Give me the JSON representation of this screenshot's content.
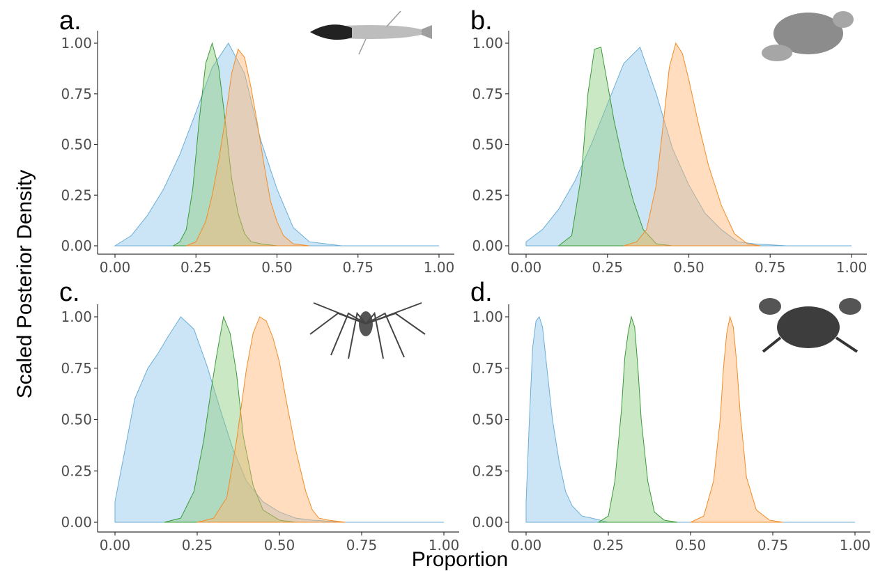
{
  "xlabel": "Proportion",
  "ylabel": "Scaled Posterior Density",
  "colors": {
    "blue": "#8fc6ea",
    "green": "#8ccd7c",
    "orange": "#ffb46e",
    "blue_line": "#6baed6",
    "green_line": "#3a9a3a",
    "orange_line": "#f28c28"
  },
  "chart_data": [
    {
      "type": "area",
      "panel": "a.",
      "icon": "shrimp-icon",
      "xlim": [
        0,
        1
      ],
      "ylim": [
        0,
        1
      ],
      "xticks": [
        "0.00",
        "0.25",
        "0.50",
        "0.75",
        "1.00"
      ],
      "yticks": [
        "0.00",
        "0.25",
        "0.50",
        "0.75",
        "1.00"
      ],
      "series": [
        {
          "color": "blue",
          "x": [
            0.0,
            0.05,
            0.1,
            0.15,
            0.2,
            0.25,
            0.3,
            0.35,
            0.4,
            0.45,
            0.5,
            0.55,
            0.6,
            0.65,
            0.7,
            1.0
          ],
          "values": [
            0.0,
            0.05,
            0.15,
            0.28,
            0.45,
            0.66,
            0.88,
            1.0,
            0.85,
            0.52,
            0.28,
            0.09,
            0.02,
            0.01,
            0.0,
            0.0
          ]
        },
        {
          "color": "green",
          "x": [
            0.18,
            0.2,
            0.22,
            0.24,
            0.26,
            0.28,
            0.3,
            0.32,
            0.34,
            0.36,
            0.38,
            0.4,
            0.42,
            0.45,
            0.5
          ],
          "values": [
            0.0,
            0.02,
            0.08,
            0.28,
            0.62,
            0.9,
            1.0,
            0.88,
            0.62,
            0.33,
            0.16,
            0.06,
            0.02,
            0.01,
            0.0
          ]
        },
        {
          "color": "orange",
          "x": [
            0.22,
            0.25,
            0.28,
            0.3,
            0.32,
            0.34,
            0.36,
            0.38,
            0.4,
            0.42,
            0.44,
            0.46,
            0.48,
            0.5,
            0.52,
            0.55,
            0.6
          ],
          "values": [
            0.0,
            0.02,
            0.12,
            0.25,
            0.42,
            0.62,
            0.85,
            0.97,
            0.93,
            0.78,
            0.6,
            0.4,
            0.22,
            0.12,
            0.05,
            0.01,
            0.0
          ]
        }
      ]
    },
    {
      "type": "area",
      "panel": "b.",
      "icon": "crab-icon",
      "xlim": [
        0,
        1
      ],
      "ylim": [
        0,
        1
      ],
      "xticks": [
        "0.00",
        "0.25",
        "0.50",
        "0.75",
        "1.00"
      ],
      "yticks": [
        "0.00",
        "0.25",
        "0.50",
        "0.75",
        "1.00"
      ],
      "series": [
        {
          "color": "blue",
          "x": [
            0.0,
            0.05,
            0.1,
            0.15,
            0.2,
            0.25,
            0.3,
            0.35,
            0.4,
            0.45,
            0.5,
            0.55,
            0.6,
            0.65,
            0.7,
            0.8,
            1.0
          ],
          "values": [
            0.02,
            0.08,
            0.18,
            0.32,
            0.5,
            0.7,
            0.9,
            0.98,
            0.75,
            0.48,
            0.3,
            0.16,
            0.08,
            0.02,
            0.01,
            0.0,
            0.0
          ]
        },
        {
          "color": "green",
          "x": [
            0.1,
            0.14,
            0.17,
            0.19,
            0.21,
            0.23,
            0.25,
            0.27,
            0.3,
            0.33,
            0.36,
            0.4,
            0.45
          ],
          "values": [
            0.0,
            0.05,
            0.35,
            0.75,
            0.97,
            0.98,
            0.8,
            0.62,
            0.4,
            0.22,
            0.08,
            0.01,
            0.0
          ]
        },
        {
          "color": "orange",
          "x": [
            0.3,
            0.34,
            0.37,
            0.4,
            0.42,
            0.44,
            0.46,
            0.48,
            0.5,
            0.53,
            0.56,
            0.6,
            0.64,
            0.68,
            0.72
          ],
          "values": [
            0.0,
            0.02,
            0.08,
            0.3,
            0.58,
            0.88,
            1.0,
            0.95,
            0.82,
            0.6,
            0.4,
            0.2,
            0.06,
            0.01,
            0.0
          ]
        }
      ]
    },
    {
      "type": "area",
      "panel": "c.",
      "icon": "spider-crab-icon",
      "xlim": [
        0,
        1
      ],
      "ylim": [
        0,
        1
      ],
      "xticks": [
        "0.00",
        "0.25",
        "0.50",
        "0.75",
        "1.00"
      ],
      "yticks": [
        "0.00",
        "0.25",
        "0.50",
        "0.75",
        "1.00"
      ],
      "series": [
        {
          "color": "blue",
          "x": [
            0.0,
            0.03,
            0.06,
            0.1,
            0.13,
            0.16,
            0.2,
            0.24,
            0.28,
            0.32,
            0.36,
            0.4,
            0.45,
            0.5,
            0.55,
            0.6,
            0.7,
            1.0
          ],
          "values": [
            0.1,
            0.35,
            0.6,
            0.75,
            0.82,
            0.9,
            1.0,
            0.94,
            0.76,
            0.55,
            0.35,
            0.2,
            0.1,
            0.05,
            0.02,
            0.01,
            0.0,
            0.0
          ]
        },
        {
          "color": "green",
          "x": [
            0.15,
            0.2,
            0.24,
            0.27,
            0.29,
            0.31,
            0.33,
            0.35,
            0.37,
            0.39,
            0.42,
            0.45,
            0.5,
            0.55
          ],
          "values": [
            0.0,
            0.02,
            0.15,
            0.4,
            0.62,
            0.82,
            1.0,
            0.92,
            0.72,
            0.42,
            0.18,
            0.06,
            0.01,
            0.0
          ]
        },
        {
          "color": "orange",
          "x": [
            0.25,
            0.3,
            0.34,
            0.37,
            0.4,
            0.42,
            0.44,
            0.46,
            0.48,
            0.5,
            0.52,
            0.55,
            0.58,
            0.6,
            0.62,
            0.65,
            0.7
          ],
          "values": [
            0.0,
            0.02,
            0.12,
            0.4,
            0.75,
            0.92,
            1.0,
            0.98,
            0.9,
            0.78,
            0.6,
            0.35,
            0.15,
            0.06,
            0.02,
            0.01,
            0.0
          ]
        }
      ]
    },
    {
      "type": "area",
      "panel": "d.",
      "icon": "hairy-crab-icon",
      "xlim": [
        0,
        1
      ],
      "ylim": [
        0,
        1
      ],
      "xticks": [
        "0.00",
        "0.25",
        "0.50",
        "0.75",
        "1.00"
      ],
      "yticks": [
        "0.00",
        "0.25",
        "0.50",
        "0.75",
        "1.00"
      ],
      "series": [
        {
          "color": "blue",
          "x": [
            0.0,
            0.01,
            0.02,
            0.03,
            0.04,
            0.05,
            0.06,
            0.08,
            0.1,
            0.12,
            0.14,
            0.17,
            0.2,
            0.25,
            0.3,
            1.0
          ],
          "values": [
            0.1,
            0.5,
            0.85,
            0.98,
            1.0,
            0.95,
            0.8,
            0.5,
            0.3,
            0.15,
            0.08,
            0.03,
            0.02,
            0.0,
            0.0,
            0.0
          ]
        },
        {
          "color": "green",
          "x": [
            0.22,
            0.25,
            0.27,
            0.29,
            0.3,
            0.31,
            0.32,
            0.33,
            0.34,
            0.35,
            0.37,
            0.39,
            0.42,
            0.46
          ],
          "values": [
            0.0,
            0.03,
            0.2,
            0.55,
            0.8,
            0.92,
            1.0,
            0.95,
            0.75,
            0.5,
            0.2,
            0.05,
            0.01,
            0.0
          ]
        },
        {
          "color": "orange",
          "x": [
            0.5,
            0.54,
            0.57,
            0.59,
            0.6,
            0.61,
            0.62,
            0.63,
            0.64,
            0.65,
            0.67,
            0.7,
            0.74,
            0.78
          ],
          "values": [
            0.0,
            0.03,
            0.2,
            0.5,
            0.75,
            0.92,
            1.0,
            0.95,
            0.78,
            0.55,
            0.22,
            0.06,
            0.01,
            0.0
          ]
        }
      ]
    }
  ]
}
